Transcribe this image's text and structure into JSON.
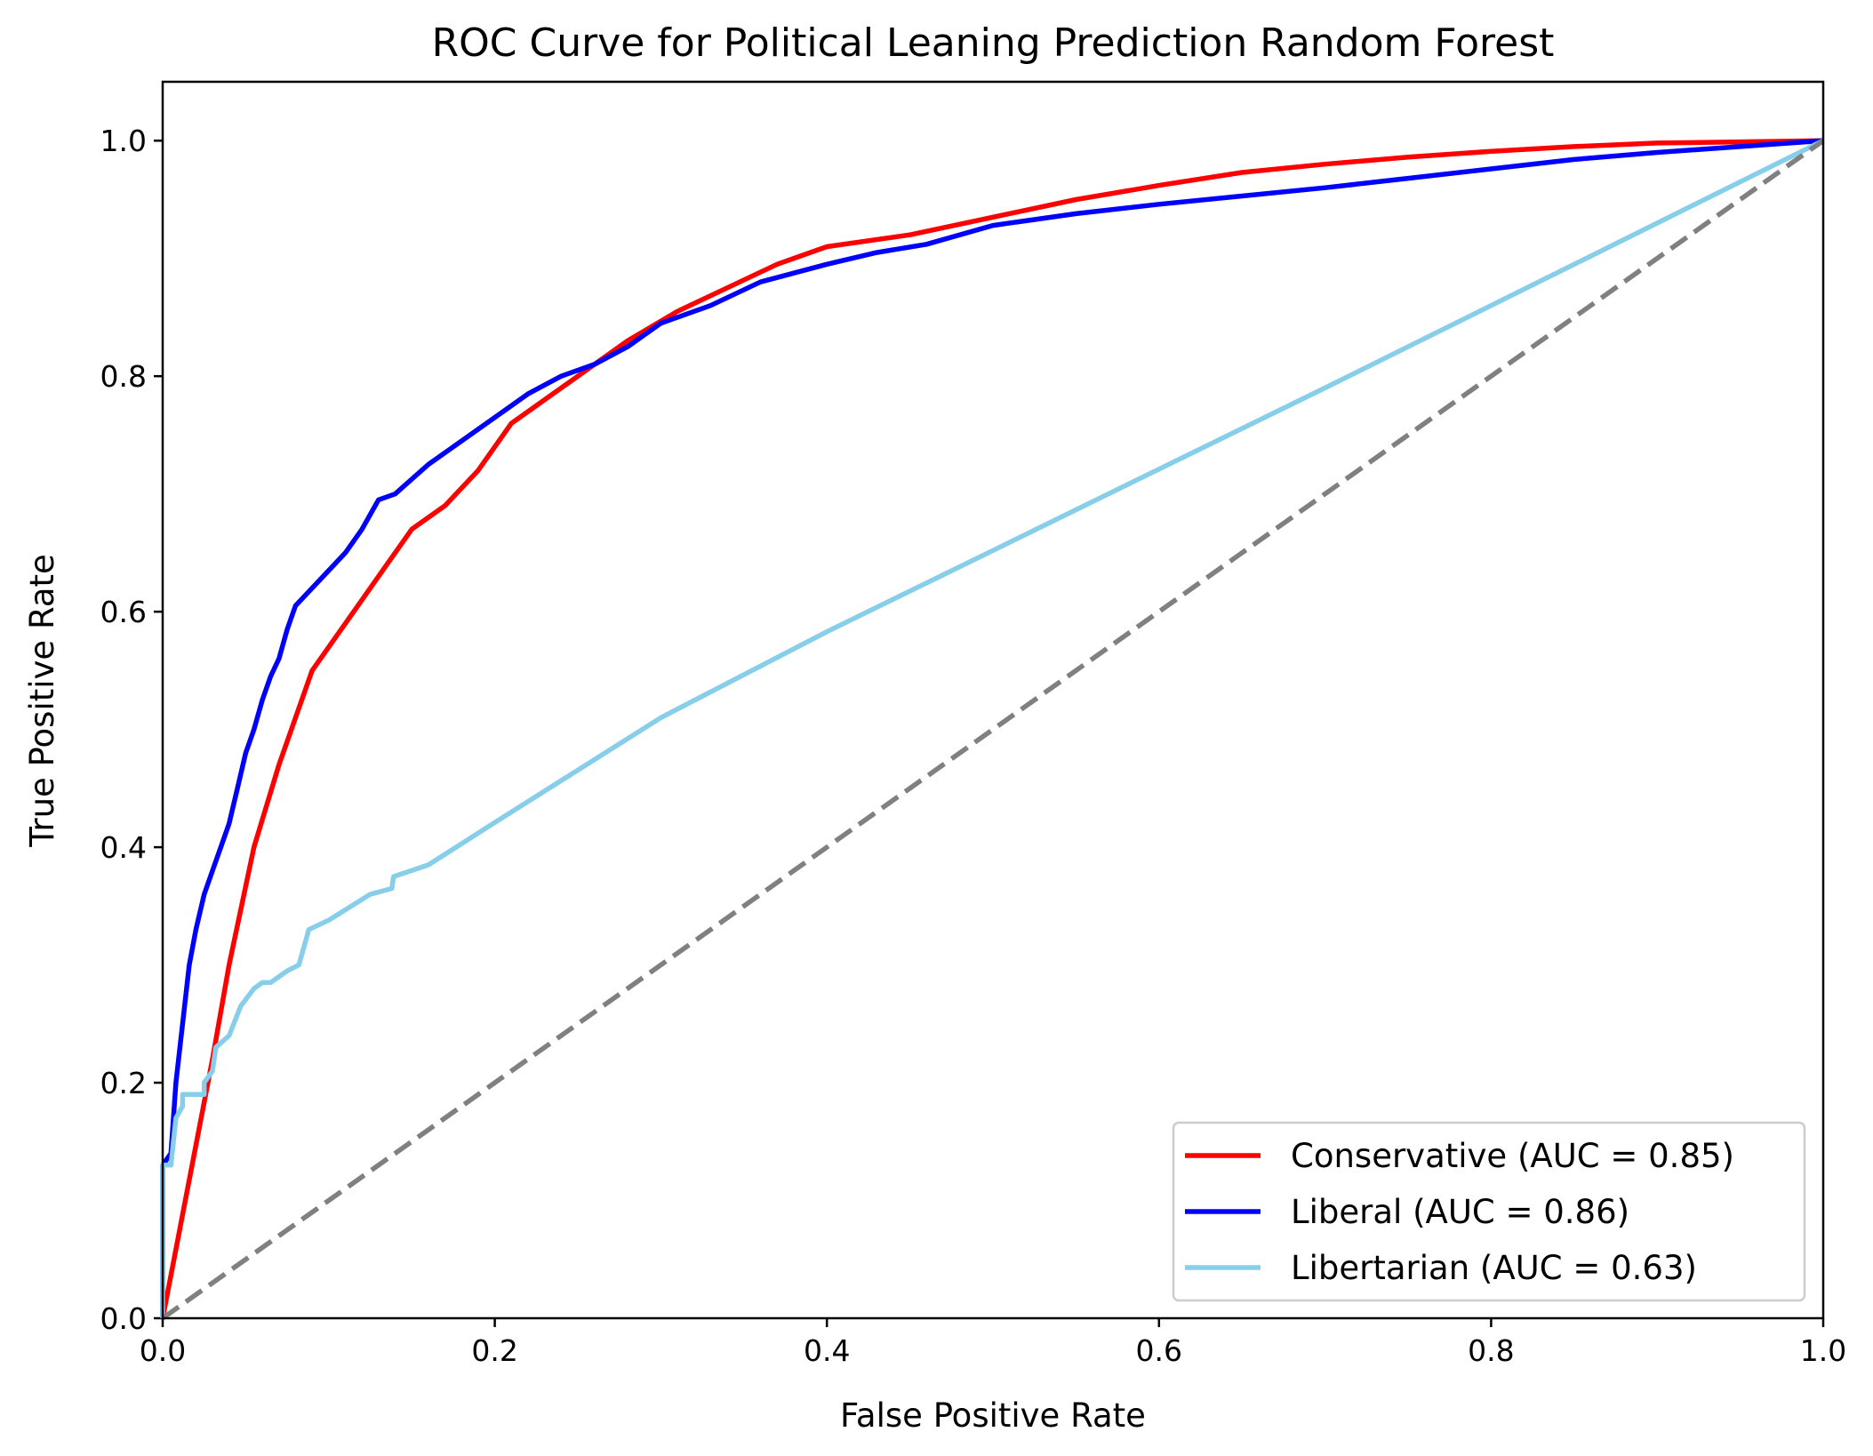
{
  "chart_data": {
    "type": "line",
    "title": "ROC Curve for Political Leaning Prediction Random Forest",
    "xlabel": "False Positive Rate",
    "ylabel": "True Positive Rate",
    "xlim": [
      0.0,
      1.0
    ],
    "ylim": [
      0.0,
      1.05
    ],
    "xticks": [
      "0.0",
      "0.2",
      "0.4",
      "0.6",
      "0.8",
      "1.0"
    ],
    "yticks": [
      "0.0",
      "0.2",
      "0.4",
      "0.6",
      "0.8",
      "1.0"
    ],
    "grid": false,
    "legend_position": "lower-right",
    "series": [
      {
        "name": "Conservative (AUC = 0.85)",
        "color": "#ff0000",
        "points": [
          [
            0,
            0
          ],
          [
            0.03,
            0.22
          ],
          [
            0.04,
            0.3
          ],
          [
            0.055,
            0.4
          ],
          [
            0.07,
            0.47
          ],
          [
            0.09,
            0.55
          ],
          [
            0.11,
            0.59
          ],
          [
            0.13,
            0.63
          ],
          [
            0.15,
            0.67
          ],
          [
            0.17,
            0.69
          ],
          [
            0.19,
            0.72
          ],
          [
            0.21,
            0.76
          ],
          [
            0.23,
            0.78
          ],
          [
            0.25,
            0.8
          ],
          [
            0.28,
            0.83
          ],
          [
            0.31,
            0.855
          ],
          [
            0.34,
            0.875
          ],
          [
            0.37,
            0.895
          ],
          [
            0.4,
            0.91
          ],
          [
            0.45,
            0.92
          ],
          [
            0.5,
            0.935
          ],
          [
            0.55,
            0.95
          ],
          [
            0.6,
            0.962
          ],
          [
            0.65,
            0.973
          ],
          [
            0.7,
            0.98
          ],
          [
            0.75,
            0.986
          ],
          [
            0.8,
            0.991
          ],
          [
            0.85,
            0.995
          ],
          [
            0.9,
            0.998
          ],
          [
            0.95,
            0.999
          ],
          [
            1.0,
            1.0
          ]
        ]
      },
      {
        "name": "Liberal (AUC = 0.86)",
        "color": "#0000ff",
        "points": [
          [
            0,
            0
          ],
          [
            0,
            0.13
          ],
          [
            0.005,
            0.14
          ],
          [
            0.008,
            0.2
          ],
          [
            0.012,
            0.25
          ],
          [
            0.016,
            0.3
          ],
          [
            0.02,
            0.33
          ],
          [
            0.025,
            0.36
          ],
          [
            0.03,
            0.38
          ],
          [
            0.035,
            0.4
          ],
          [
            0.04,
            0.42
          ],
          [
            0.045,
            0.45
          ],
          [
            0.05,
            0.48
          ],
          [
            0.055,
            0.5
          ],
          [
            0.06,
            0.525
          ],
          [
            0.065,
            0.545
          ],
          [
            0.07,
            0.56
          ],
          [
            0.075,
            0.585
          ],
          [
            0.08,
            0.605
          ],
          [
            0.09,
            0.62
          ],
          [
            0.1,
            0.635
          ],
          [
            0.11,
            0.65
          ],
          [
            0.12,
            0.67
          ],
          [
            0.13,
            0.695
          ],
          [
            0.14,
            0.7
          ],
          [
            0.16,
            0.725
          ],
          [
            0.18,
            0.745
          ],
          [
            0.2,
            0.765
          ],
          [
            0.22,
            0.785
          ],
          [
            0.24,
            0.8
          ],
          [
            0.26,
            0.81
          ],
          [
            0.28,
            0.825
          ],
          [
            0.3,
            0.845
          ],
          [
            0.33,
            0.86
          ],
          [
            0.36,
            0.88
          ],
          [
            0.4,
            0.895
          ],
          [
            0.43,
            0.905
          ],
          [
            0.46,
            0.912
          ],
          [
            0.5,
            0.928
          ],
          [
            0.55,
            0.938
          ],
          [
            0.6,
            0.946
          ],
          [
            0.65,
            0.953
          ],
          [
            0.7,
            0.96
          ],
          [
            0.75,
            0.968
          ],
          [
            0.8,
            0.976
          ],
          [
            0.85,
            0.984
          ],
          [
            0.9,
            0.99
          ],
          [
            0.95,
            0.995
          ],
          [
            1.0,
            1.0
          ]
        ]
      },
      {
        "name": "Libertarian (AUC = 0.63)",
        "color": "#87ceeb",
        "points": [
          [
            0,
            0
          ],
          [
            0,
            0.13
          ],
          [
            0.005,
            0.13
          ],
          [
            0.008,
            0.17
          ],
          [
            0.012,
            0.18
          ],
          [
            0.012,
            0.19
          ],
          [
            0.02,
            0.19
          ],
          [
            0.025,
            0.19
          ],
          [
            0.025,
            0.2
          ],
          [
            0.03,
            0.21
          ],
          [
            0.032,
            0.23
          ],
          [
            0.04,
            0.24
          ],
          [
            0.047,
            0.265
          ],
          [
            0.055,
            0.28
          ],
          [
            0.06,
            0.285
          ],
          [
            0.065,
            0.285
          ],
          [
            0.075,
            0.295
          ],
          [
            0.082,
            0.3
          ],
          [
            0.088,
            0.33
          ],
          [
            0.1,
            0.338
          ],
          [
            0.125,
            0.36
          ],
          [
            0.138,
            0.365
          ],
          [
            0.139,
            0.375
          ],
          [
            0.16,
            0.385
          ],
          [
            0.2,
            0.421
          ],
          [
            0.3,
            0.51
          ],
          [
            0.4,
            0.583
          ],
          [
            0.5,
            0.652
          ],
          [
            0.6,
            0.721
          ],
          [
            0.7,
            0.79
          ],
          [
            0.8,
            0.86
          ],
          [
            0.9,
            0.93
          ],
          [
            1.0,
            1.0
          ]
        ]
      },
      {
        "name": "",
        "color": "#808080",
        "dashed": true,
        "points": [
          [
            0,
            0
          ],
          [
            1,
            1
          ]
        ]
      }
    ]
  }
}
